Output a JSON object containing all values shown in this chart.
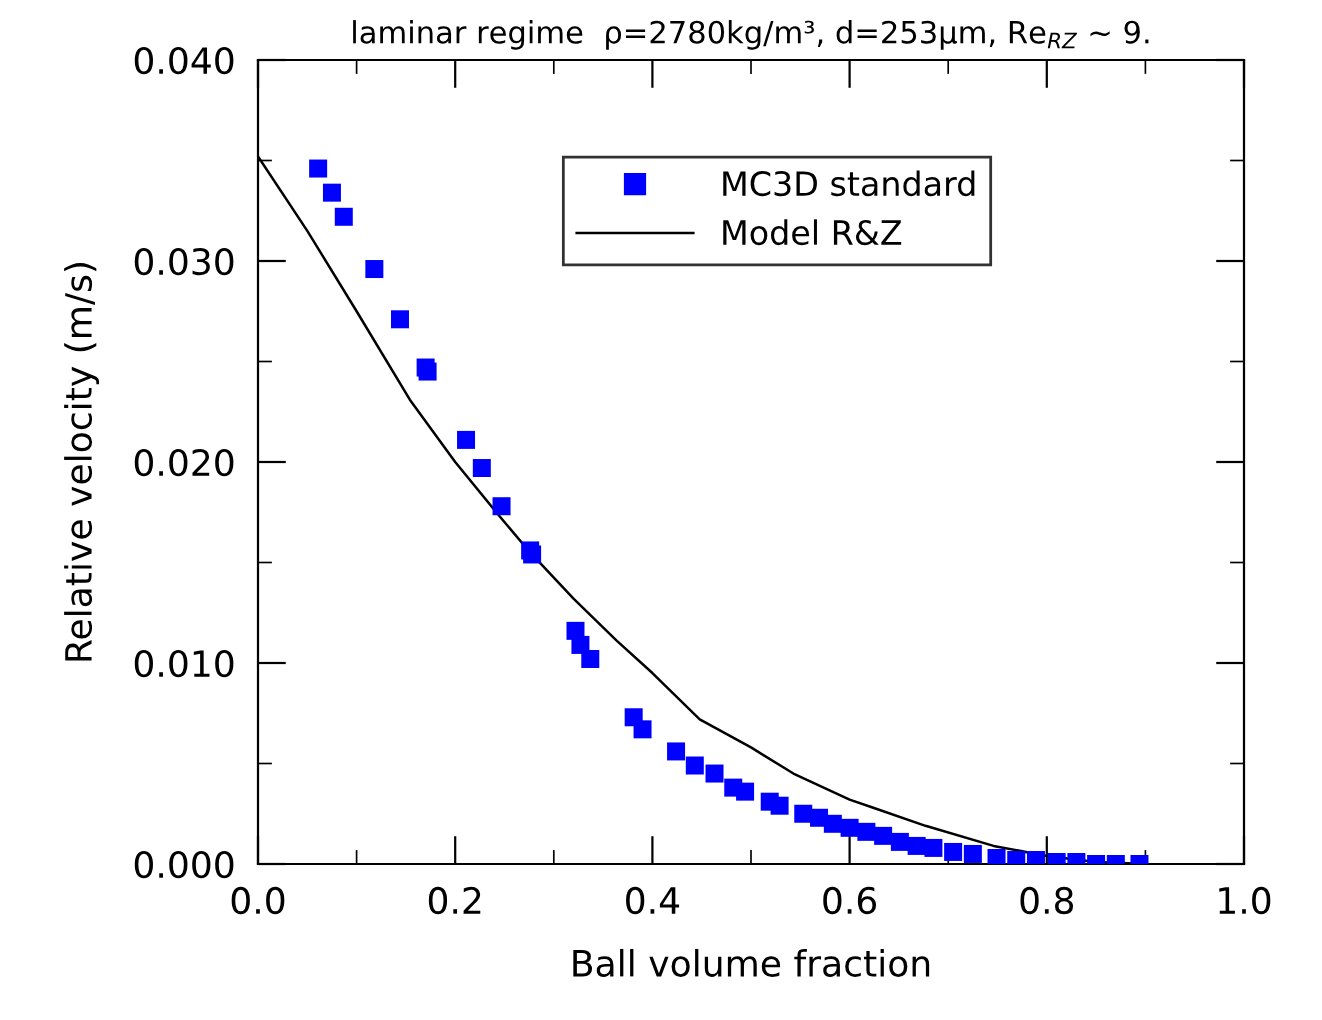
{
  "chart_data": {
    "type": "scatter",
    "title": "laminar regime  ρ=2780kg/m³, d=253μm, Re$_{RZ}$ ~ 9.",
    "xlabel": "Ball volume fraction",
    "ylabel": "Relative velocity (m/s)",
    "xlim": [
      0.0,
      1.0
    ],
    "ylim": [
      0.0,
      0.04
    ],
    "xticks": [
      {
        "value": 0.0,
        "label": "0.0"
      },
      {
        "value": 0.1,
        "label": null
      },
      {
        "value": 0.2,
        "label": "0.2"
      },
      {
        "value": 0.3,
        "label": null
      },
      {
        "value": 0.4,
        "label": "0.4"
      },
      {
        "value": 0.5,
        "label": null
      },
      {
        "value": 0.6,
        "label": "0.6"
      },
      {
        "value": 0.7,
        "label": null
      },
      {
        "value": 0.8,
        "label": "0.8"
      },
      {
        "value": 0.9,
        "label": null
      },
      {
        "value": 1.0,
        "label": "1.0"
      }
    ],
    "yticks": [
      {
        "value": 0.0,
        "label": "0.000"
      },
      {
        "value": 0.005,
        "label": null
      },
      {
        "value": 0.01,
        "label": "0.010"
      },
      {
        "value": 0.015,
        "label": null
      },
      {
        "value": 0.02,
        "label": "0.020"
      },
      {
        "value": 0.025,
        "label": null
      },
      {
        "value": 0.03,
        "label": "0.030"
      },
      {
        "value": 0.035,
        "label": null
      },
      {
        "value": 0.04,
        "label": "0.040"
      }
    ],
    "grid": false,
    "legend": "top right",
    "series": [
      {
        "name": "MC3D standard",
        "marker": "square",
        "color": "#0000ff",
        "x": [
          0.061,
          0.075,
          0.087,
          0.118,
          0.144,
          0.17,
          0.172,
          0.211,
          0.227,
          0.247,
          0.276,
          0.278,
          0.322,
          0.327,
          0.337,
          0.381,
          0.39,
          0.424,
          0.443,
          0.463,
          0.482,
          0.494,
          0.519,
          0.529,
          0.553,
          0.569,
          0.583,
          0.6,
          0.617,
          0.634,
          0.651,
          0.668,
          0.685,
          0.705,
          0.725,
          0.749,
          0.769,
          0.789,
          0.81,
          0.83,
          0.85,
          0.87,
          0.894
        ],
        "values": [
          0.0346,
          0.0334,
          0.0322,
          0.0296,
          0.0271,
          0.0247,
          0.0245,
          0.0211,
          0.0197,
          0.0178,
          0.0156,
          0.0154,
          0.0116,
          0.0109,
          0.0102,
          0.0073,
          0.0067,
          0.0056,
          0.0049,
          0.0045,
          0.0038,
          0.0036,
          0.0031,
          0.0029,
          0.0025,
          0.0023,
          0.002,
          0.0018,
          0.0016,
          0.0014,
          0.0011,
          0.0009,
          0.0008,
          0.0006,
          0.0005,
          0.0003,
          0.0002,
          0.0002,
          0.0001,
          0.0001,
          0.0,
          0.0,
          0.0
        ]
      },
      {
        "name": "Model R&Z",
        "type": "line",
        "marker": "none",
        "line_style": "solid",
        "color": "#000000",
        "x": [
          0.0,
          0.05,
          0.1,
          0.154,
          0.2,
          0.245,
          0.276,
          0.32,
          0.364,
          0.4,
          0.448,
          0.5,
          0.543,
          0.6,
          0.624,
          0.677,
          0.746,
          0.8,
          0.85,
          0.9
        ],
        "values": [
          0.0352,
          0.0315,
          0.0275,
          0.0231,
          0.02,
          0.0173,
          0.0155,
          0.0132,
          0.0111,
          0.0095,
          0.0072,
          0.0058,
          0.0045,
          0.0032,
          0.0028,
          0.0019,
          0.0009,
          0.0004,
          0.0001,
          0.0
        ]
      }
    ]
  }
}
